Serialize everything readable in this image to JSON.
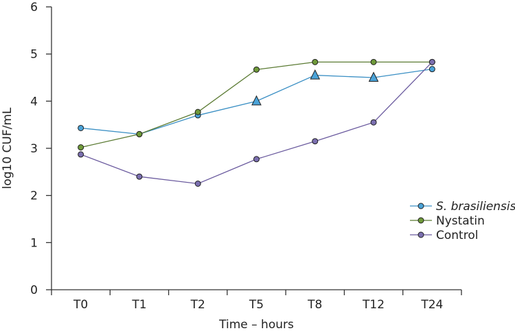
{
  "chart_data": {
    "type": "line",
    "title": "",
    "xlabel": "Time – hours",
    "ylabel": "log10 CUF/mL",
    "categories": [
      "T0",
      "T1",
      "T2",
      "T5",
      "T8",
      "T12",
      "T24"
    ],
    "ylim": [
      0,
      6
    ],
    "yticks": [
      0,
      1,
      2,
      3,
      4,
      5,
      6
    ],
    "grid": false,
    "legend_position": "right",
    "series": [
      {
        "name": "S. brasiliensis",
        "italic": true,
        "color": "#3a8fc4",
        "values": [
          3.43,
          3.3,
          3.7,
          4.0,
          4.55,
          4.5,
          4.68
        ],
        "markers": [
          "circle",
          "circle",
          "circle",
          "triangle",
          "triangle",
          "triangle",
          "circle"
        ]
      },
      {
        "name": "Nystatin",
        "italic": false,
        "color": "#5a7a32",
        "values": [
          3.02,
          3.3,
          3.77,
          4.67,
          4.83,
          4.83,
          4.83
        ],
        "markers": [
          "circle",
          "circle",
          "circle",
          "circle",
          "circle",
          "circle",
          "circle"
        ]
      },
      {
        "name": "Control",
        "italic": false,
        "color": "#6a5a9e",
        "values": [
          2.87,
          2.4,
          2.25,
          2.77,
          3.15,
          3.55,
          4.83
        ],
        "markers": [
          "circle",
          "circle",
          "circle",
          "circle",
          "circle",
          "circle",
          "circle"
        ]
      }
    ]
  },
  "colors": {
    "axis": "#333333",
    "marker_fill": {
      "S. brasiliensis": "#4aa3d8",
      "Nystatin": "#6f9a3a",
      "Control": "#7b6fb0"
    }
  }
}
